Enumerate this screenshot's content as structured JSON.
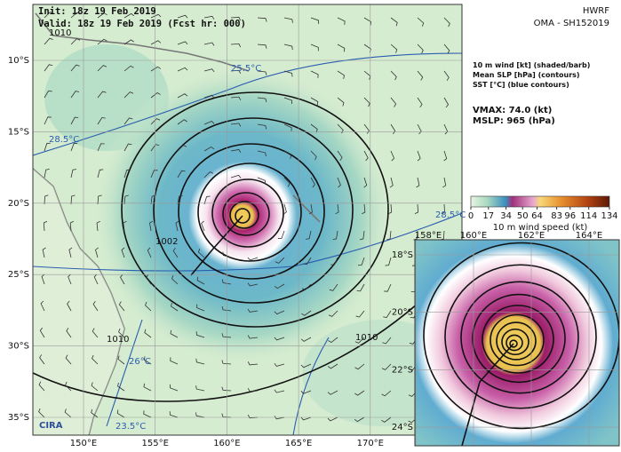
{
  "header": {
    "init": "Init:  18z 19 Feb 2019",
    "valid": "Valid: 18z 19 Feb 2019 (Fcst hr: 000)",
    "model": "HWRF",
    "storm": "OMA - SH152019"
  },
  "legend": {
    "lines": [
      "10 m wind [kt] (shaded/barb)",
      "Mean SLP [hPa] (contours)",
      "SST [°C] (blue contours)"
    ],
    "vmax": "VMAX:  74.0 (kt)",
    "mslp": "MSLP:  965 (hPa)"
  },
  "colorbar": {
    "ticks": [
      0,
      17,
      34,
      50,
      64,
      83,
      96,
      114,
      134
    ],
    "lim": [
      0,
      134
    ],
    "label": "10 m wind speed (kt)"
  },
  "main_map": {
    "lat_labels": [
      "10°S",
      "15°S",
      "20°S",
      "25°S",
      "30°S",
      "35°S"
    ],
    "lon_labels": [
      "150°E",
      "155°E",
      "160°E",
      "165°E",
      "170°E"
    ],
    "contour_labels": [
      "1010",
      "1002",
      "1010",
      "1010",
      "28.5°C",
      "26°C",
      "23.5°C",
      "28.5°C",
      "25.5°C"
    ]
  },
  "inset_map": {
    "lat_labels": [
      "18°S",
      "20°S",
      "22°S",
      "24°S"
    ],
    "lon_labels": [
      "158°E",
      "160°E",
      "162°E",
      "164°E"
    ]
  },
  "logo": "CIRA"
}
